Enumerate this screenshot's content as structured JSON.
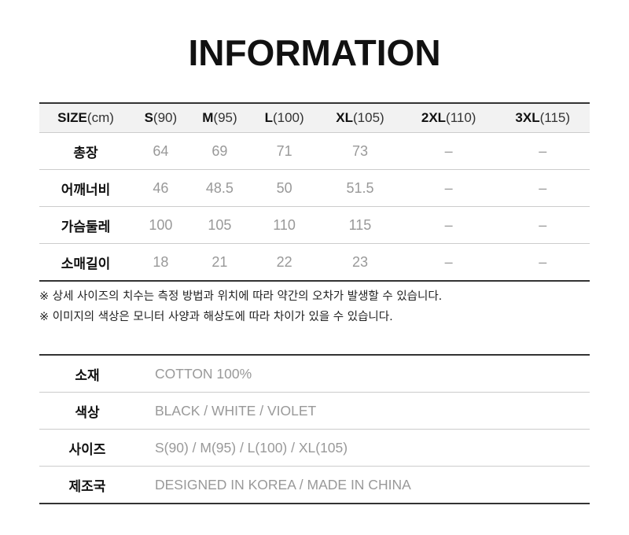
{
  "title": "INFORMATION",
  "size_table": {
    "header": [
      {
        "bold": "SIZE",
        "rest": "(cm)"
      },
      {
        "bold": "S",
        "rest": "(90)"
      },
      {
        "bold": "M",
        "rest": "(95)"
      },
      {
        "bold": "L",
        "rest": "(100)"
      },
      {
        "bold": "XL",
        "rest": "(105)"
      },
      {
        "bold": "2XL",
        "rest": "(110)"
      },
      {
        "bold": "3XL",
        "rest": "(115)"
      }
    ],
    "rows": [
      {
        "label": "총장",
        "values": [
          "64",
          "69",
          "71",
          "73",
          "–",
          "–"
        ]
      },
      {
        "label": "어깨너비",
        "values": [
          "46",
          "48.5",
          "50",
          "51.5",
          "–",
          "–"
        ]
      },
      {
        "label": "가슴둘레",
        "values": [
          "100",
          "105",
          "110",
          "115",
          "–",
          "–"
        ]
      },
      {
        "label": "소매길이",
        "values": [
          "18",
          "21",
          "22",
          "23",
          "–",
          "–"
        ]
      }
    ]
  },
  "notes": [
    "※ 상세 사이즈의 치수는 측정 방법과 위치에 따라 약간의 오차가 발생할 수 있습니다.",
    "※ 이미지의 색상은 모니터 사양과 해상도에 따라 차이가 있을 수 있습니다."
  ],
  "info_table": [
    {
      "label": "소재",
      "value": "COTTON 100%"
    },
    {
      "label": "색상",
      "value": "BLACK / WHITE / VIOLET"
    },
    {
      "label": "사이즈",
      "value": "S(90) / M(95) / L(100) / XL(105)"
    },
    {
      "label": "제조국",
      "value": "DESIGNED IN KOREA / MADE IN CHINA"
    }
  ]
}
